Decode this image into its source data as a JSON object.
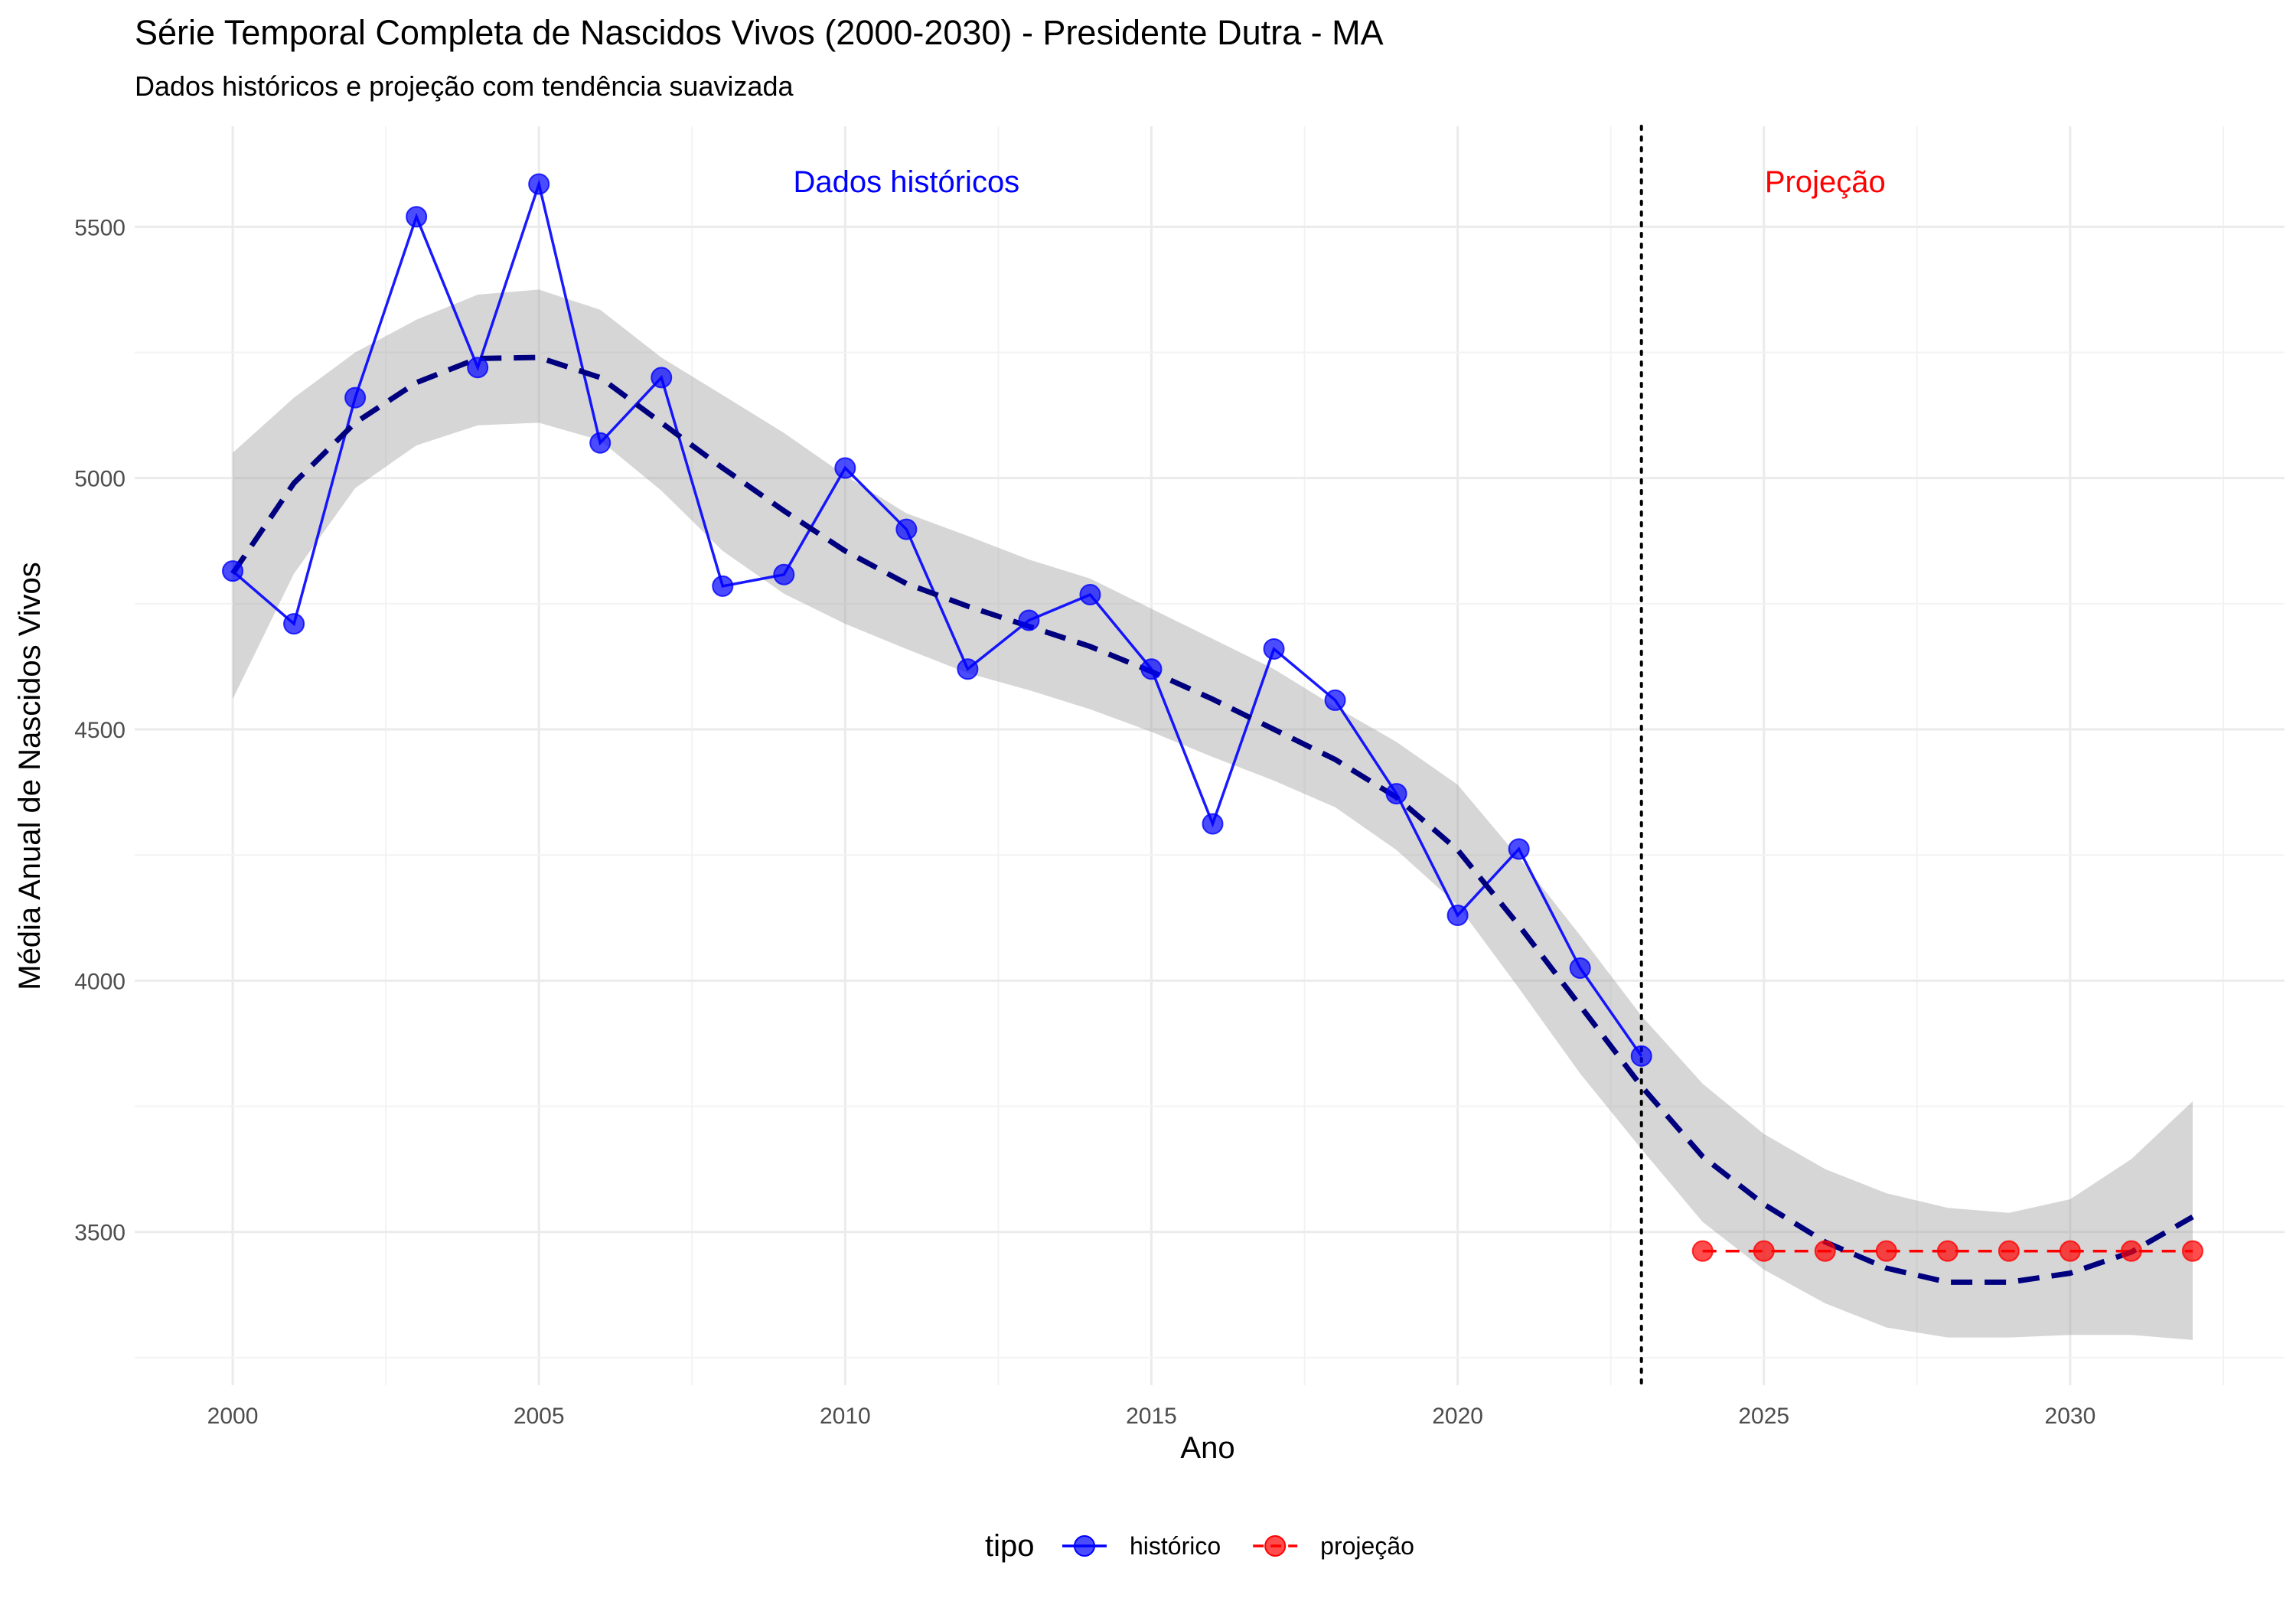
{
  "chart_data": {
    "type": "line",
    "title": "Série Temporal Completa de Nascidos Vivos (2000-2030) -  Presidente Dutra - MA",
    "subtitle": "Dados históricos e projeção com tendência suavizada",
    "xlabel": "Ano",
    "ylabel": "Média Anual de Nascidos Vivos",
    "xlim": [
      1998.4,
      2033.5
    ],
    "ylim": [
      3195,
      5700
    ],
    "x_ticks": [
      2000,
      2005,
      2010,
      2015,
      2020,
      2025,
      2030
    ],
    "y_ticks": [
      3500,
      4000,
      4500,
      5000,
      5500
    ],
    "grid": true,
    "legend": {
      "position": "bottom",
      "title": "tipo",
      "entries": [
        {
          "label": "histórico",
          "color": "#0000ff"
        },
        {
          "label": "projeção",
          "color": "#ff0000"
        }
      ]
    },
    "annotations": [
      {
        "text": "Dados históricos",
        "x": 2011,
        "y": 5590,
        "color": "#0000ff"
      },
      {
        "text": "Projeção",
        "x": 2026,
        "y": 5590,
        "color": "#ff0000"
      }
    ],
    "cutoff_x": 2023,
    "series": [
      {
        "name": "histórico",
        "color": "#0000ff",
        "x": [
          2000,
          2001,
          2002,
          2003,
          2004,
          2005,
          2006,
          2007,
          2008,
          2009,
          2010,
          2011,
          2012,
          2013,
          2014,
          2015,
          2016,
          2017,
          2018,
          2019,
          2020,
          2021,
          2022,
          2023
        ],
        "y": [
          4815,
          4710,
          5160,
          5520,
          5220,
          5585,
          5070,
          5200,
          4785,
          4808,
          5020,
          4898,
          4620,
          4717,
          4768,
          4620,
          4312,
          4660,
          4558,
          4372,
          4130,
          4262,
          4025,
          3850
        ]
      },
      {
        "name": "projeção",
        "color": "#ff0000",
        "x": [
          2024,
          2025,
          2026,
          2027,
          2028,
          2029,
          2030,
          2031,
          2032
        ],
        "y": [
          3462,
          3462,
          3462,
          3462,
          3462,
          3462,
          3462,
          3462,
          3462
        ]
      }
    ],
    "trend": {
      "color": "#00007f",
      "x": [
        2000,
        2001,
        2002,
        2003,
        2004,
        2005,
        2006,
        2007,
        2008,
        2009,
        2010,
        2011,
        2012,
        2013,
        2014,
        2015,
        2016,
        2017,
        2018,
        2019,
        2020,
        2021,
        2022,
        2023,
        2024,
        2025,
        2026,
        2027,
        2028,
        2029,
        2030,
        2031,
        2032
      ],
      "y": [
        4810,
        4990,
        5110,
        5190,
        5238,
        5240,
        5200,
        5110,
        5020,
        4935,
        4855,
        4790,
        4745,
        4705,
        4665,
        4615,
        4560,
        4500,
        4440,
        4365,
        4260,
        4110,
        3950,
        3790,
        3650,
        3555,
        3480,
        3428,
        3400,
        3400,
        3418,
        3460,
        3530
      ],
      "lower": [
        4560,
        4810,
        4980,
        5065,
        5105,
        5110,
        5075,
        4975,
        4855,
        4770,
        4710,
        4660,
        4612,
        4578,
        4540,
        4495,
        4445,
        4398,
        4345,
        4260,
        4150,
        3985,
        3815,
        3665,
        3520,
        3425,
        3358,
        3310,
        3290,
        3290,
        3295,
        3295,
        3285
      ],
      "upper": [
        5050,
        5160,
        5250,
        5315,
        5365,
        5375,
        5335,
        5240,
        5165,
        5090,
        5005,
        4930,
        4885,
        4838,
        4800,
        4740,
        4680,
        4620,
        4545,
        4475,
        4390,
        4245,
        4090,
        3930,
        3795,
        3695,
        3625,
        3577,
        3548,
        3538,
        3565,
        3645,
        3760
      ]
    }
  }
}
